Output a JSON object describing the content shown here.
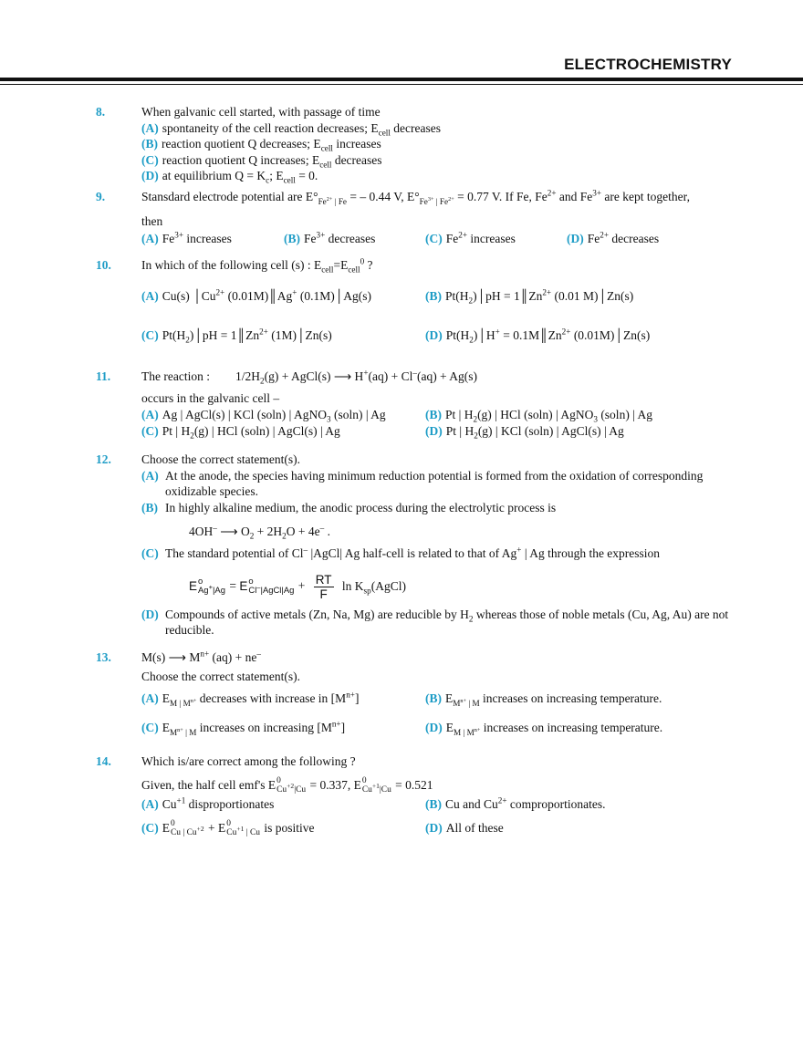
{
  "header": {
    "title": "ELECTROCHEMISTRY"
  },
  "colors": {
    "label": "#1d9cc6",
    "text": "#111111"
  },
  "q8": {
    "number": "8.",
    "stem": "When galvanic cell started, with passage of time",
    "options": [
      {
        "label": "(A)",
        "text": "spontaneity of the cell reaction decreases; E_{cell} decreases"
      },
      {
        "label": "(B)",
        "text": "reaction quotient Q decreases; E_{cell} increases"
      },
      {
        "label": "(C)",
        "text": "reaction quotient Q increases; E_{cell} decreases"
      },
      {
        "label": "(D)",
        "text": "at equilibrium Q = K_{c}; E_{cell} = 0."
      }
    ]
  },
  "q9": {
    "number": "9.",
    "stem": "Stansdard electrode potential are E°_{Fe^{2+} | Fe} = – 0.44 V, E°_{Fe^{3+} | Fe^{2+}} = 0.77 V. If Fe, Fe^{2+} and Fe^{3+} are kept together,",
    "stem2": "then",
    "options": [
      {
        "label": "(A)",
        "text": "Fe^{3+} increases"
      },
      {
        "label": "(B)",
        "text": "Fe^{3+} decreases"
      },
      {
        "label": "(C)",
        "text": "Fe^{2+} increases"
      },
      {
        "label": "(D)",
        "text": "Fe^{2+} decreases"
      }
    ]
  },
  "q10": {
    "number": "10.",
    "stem": "In which of the following cell (s) : E_{cell}=E_{cell}^{0} ?",
    "options": [
      {
        "label": "(A)",
        "text": "Cu(s) │Cu^{2+} (0.01M)║Ag^{+} (0.1M)│Ag(s)"
      },
      {
        "label": "(B)",
        "text": "Pt(H_{2})│pH = 1║Zn^{2+} (0.01 M)│Zn(s)"
      },
      {
        "label": "(C)",
        "text": "Pt(H_{2})│pH = 1║Zn^{2+} (1M)│Zn(s)"
      },
      {
        "label": "(D)",
        "text": "Pt(H_{2})│H^{+} = 0.1M║Zn^{2+} (0.01M)│Zn(s)"
      }
    ]
  },
  "q11": {
    "number": "11.",
    "stem": "The reaction :",
    "equation": "1/2H_{2}(g) + AgCl(s) ⟶ H^{+}(aq) + Cl^{–}(aq) + Ag(s)",
    "stem2": "occurs in the galvanic cell –",
    "options": [
      {
        "label": "(A)",
        "text": "Ag | AgCl(s) | KCl (soln) | AgNO_{3} (soln) | Ag"
      },
      {
        "label": "(B)",
        "text": "Pt | H_{2}(g) | HCl (soln) | AgNO_{3} (soln) | Ag"
      },
      {
        "label": "(C)",
        "text": "Pt | H_{2}(g) | HCl (soln) | AgCl(s) | Ag"
      },
      {
        "label": "(D)",
        "text": "Pt | H_{2}(g) | KCl (soln) | AgCl(s) | Ag"
      }
    ]
  },
  "q12": {
    "number": "12.",
    "stem": "Choose the correct statement(s).",
    "options": [
      {
        "label": "(A)",
        "text": "At the anode, the species having minimum reduction potential is formed from the oxidation of corresponding oxidizable species."
      },
      {
        "label": "(B)",
        "text": "In highly alkaline medium, the anodic process during the electrolytic process is"
      },
      {
        "label": "(C)",
        "text": "The standard potential of Cl^{–} |AgCl| Ag half-cell is related to that of Ag^{+} | Ag through the expression"
      },
      {
        "label": "(D)",
        "text": "Compounds of active metals (Zn, Na, Mg) are reducible by H_{2} whereas those of noble metals (Cu, Ag, Au) are not reducible."
      }
    ],
    "equation_b": "4OH^{–} ⟶ O_{2} + 2H_{2}O + 4e^{–} .",
    "formula_c": {
      "lhs": "E^{o}_{Ag^{+}|Ag}",
      "eq": "=",
      "rhs": "E^{o}_{Cl^{–}|AgCl|Ag}",
      "plus": "+",
      "numerator": "RT",
      "denominator": "F",
      "tail": "ln K_{sp}(AgCl)"
    }
  },
  "q13": {
    "number": "13.",
    "equation": "M(s) ⟶ M^{n+} (aq) + ne^{–}",
    "stem": "Choose the correct statement(s).",
    "options": [
      {
        "label": "(A)",
        "text": "E_{M | M^{n+}} decreases with increase in [M^{n+}]"
      },
      {
        "label": "(B)",
        "text": "E_{M^{n+} | M} increases on increasing temperature."
      },
      {
        "label": "(C)",
        "text": "E_{M^{n+} | M} increases on increasing [M^{n+}]"
      },
      {
        "label": "(D)",
        "text": "E_{M | M^{n+}} increases on increasing temperature."
      }
    ]
  },
  "q14": {
    "number": "14.",
    "stem": "Which is/are correct among the following ?",
    "given": "Given, the half cell emf's E^{0}_{Cu^{+2}|Cu} = 0.337, E^{0}_{Cu^{+1}|Cu} = 0.521",
    "options": [
      {
        "label": "(A)",
        "text": "Cu^{+1} disproportionates"
      },
      {
        "label": "(B)",
        "text": "Cu and Cu^{2+} comproportionates."
      },
      {
        "label": "(C)",
        "text": "E^{0}_{Cu | Cu^{+2}} + E^{0}_{Cu^{+1} | Cu} is positive"
      },
      {
        "label": "(D)",
        "text": "All of these"
      }
    ]
  }
}
